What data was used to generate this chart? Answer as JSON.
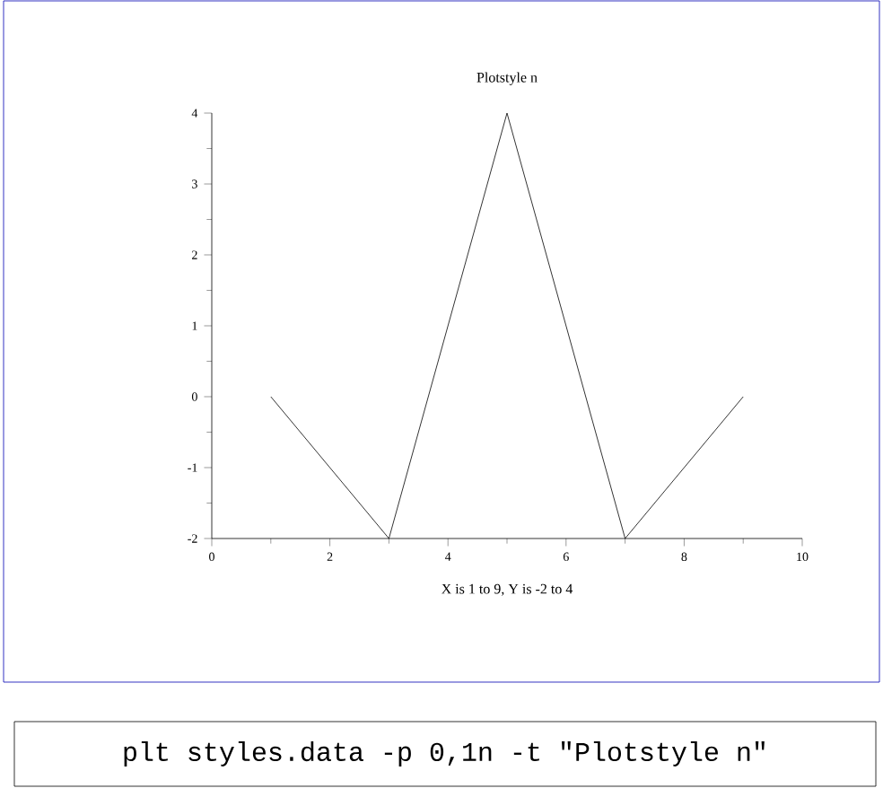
{
  "chart_data": {
    "type": "line",
    "title": "Plotstyle n",
    "xlabel": "X is 1 to 9,  Y is -2 to 4",
    "x": [
      1,
      3,
      5,
      7,
      9
    ],
    "values": [
      0,
      -2,
      4,
      -2,
      0
    ],
    "color": "#000000",
    "xlim": [
      0,
      10
    ],
    "ylim": [
      -2,
      4
    ],
    "xticks": [
      0,
      2,
      4,
      6,
      8,
      10
    ],
    "yticks": [
      -2,
      -1,
      0,
      1,
      2,
      3,
      4
    ],
    "annotations": [
      "plt styles.data -p 0,1n -t \"Plotstyle n\""
    ]
  }
}
